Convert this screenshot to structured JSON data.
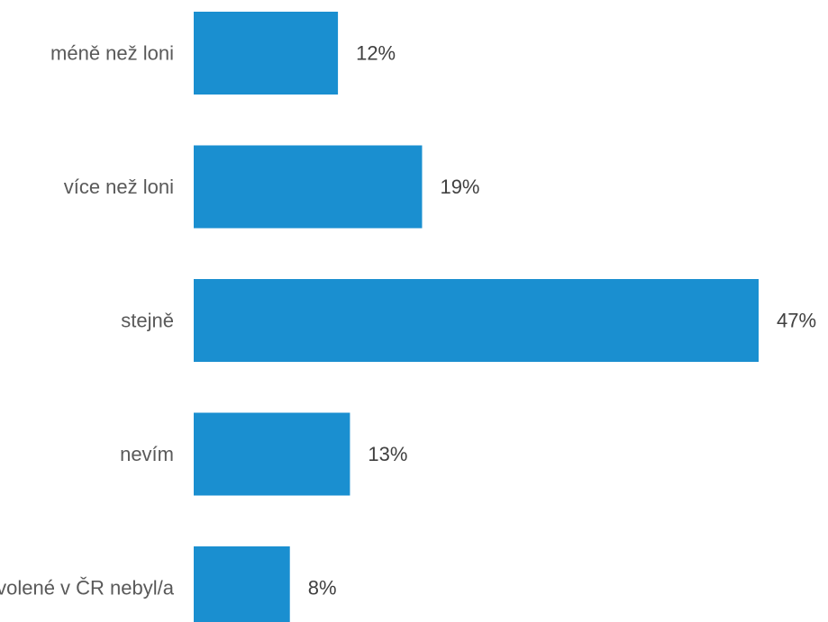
{
  "chart_data": {
    "type": "bar",
    "orientation": "horizontal",
    "categories": [
      "méně než loni",
      "více než loni",
      "stejně",
      "nevím",
      "letos jsem na dovolené v ČR nebyl/a"
    ],
    "values": [
      12,
      19,
      47,
      13,
      8
    ],
    "data_labels": [
      "12%",
      "19%",
      "47%",
      "13%",
      "8%"
    ],
    "value_unit": "%",
    "xlim": [
      0,
      47
    ],
    "grid": false,
    "legend": "none",
    "bar_color": "#1a8fd0"
  }
}
